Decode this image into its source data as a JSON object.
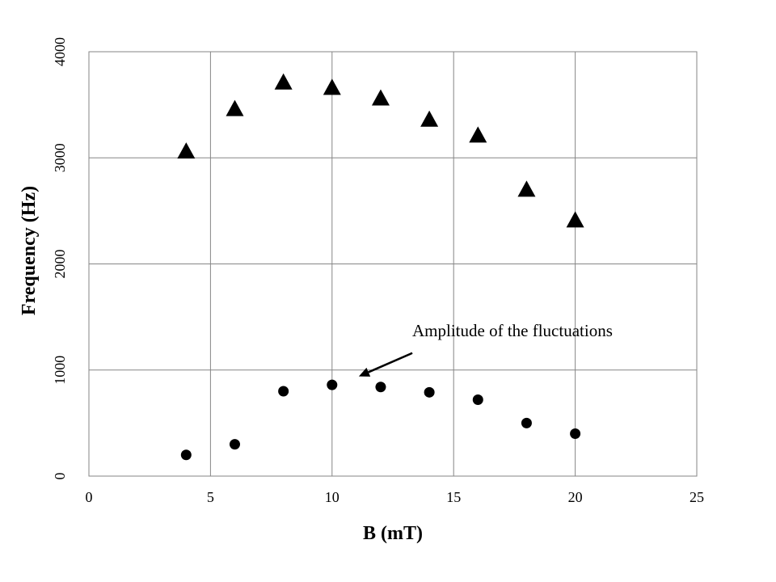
{
  "chart_data": {
    "type": "scatter",
    "title": "",
    "xlabel": "B (mT)",
    "ylabel": "Frequency (Hz)",
    "xlim": [
      0,
      25
    ],
    "ylim": [
      0,
      4000
    ],
    "x_ticks": [
      0,
      5,
      10,
      15,
      20,
      25
    ],
    "y_ticks": [
      0,
      1000,
      2000,
      3000,
      4000
    ],
    "grid": true,
    "legend": "none",
    "series": [
      {
        "marker": "triangle",
        "color": "#000000",
        "points": [
          {
            "x": 4,
            "y": 3070
          },
          {
            "x": 6,
            "y": 3470
          },
          {
            "x": 8,
            "y": 3720
          },
          {
            "x": 10,
            "y": 3670
          },
          {
            "x": 12,
            "y": 3570
          },
          {
            "x": 14,
            "y": 3370
          },
          {
            "x": 16,
            "y": 3220
          },
          {
            "x": 18,
            "y": 2710
          },
          {
            "x": 20,
            "y": 2420
          }
        ]
      },
      {
        "marker": "circle",
        "color": "#000000",
        "points": [
          {
            "x": 4,
            "y": 200
          },
          {
            "x": 6,
            "y": 300
          },
          {
            "x": 8,
            "y": 800
          },
          {
            "x": 10,
            "y": 860
          },
          {
            "x": 12,
            "y": 840
          },
          {
            "x": 14,
            "y": 790
          },
          {
            "x": 16,
            "y": 720
          },
          {
            "x": 18,
            "y": 500
          },
          {
            "x": 20,
            "y": 400
          }
        ]
      }
    ],
    "annotations": [
      {
        "text": "Amplitude of the fluctuations",
        "anchor": {
          "x": 13.3,
          "y": 1160
        },
        "arrow_to": {
          "x": 11.1,
          "y": 940
        }
      }
    ]
  }
}
